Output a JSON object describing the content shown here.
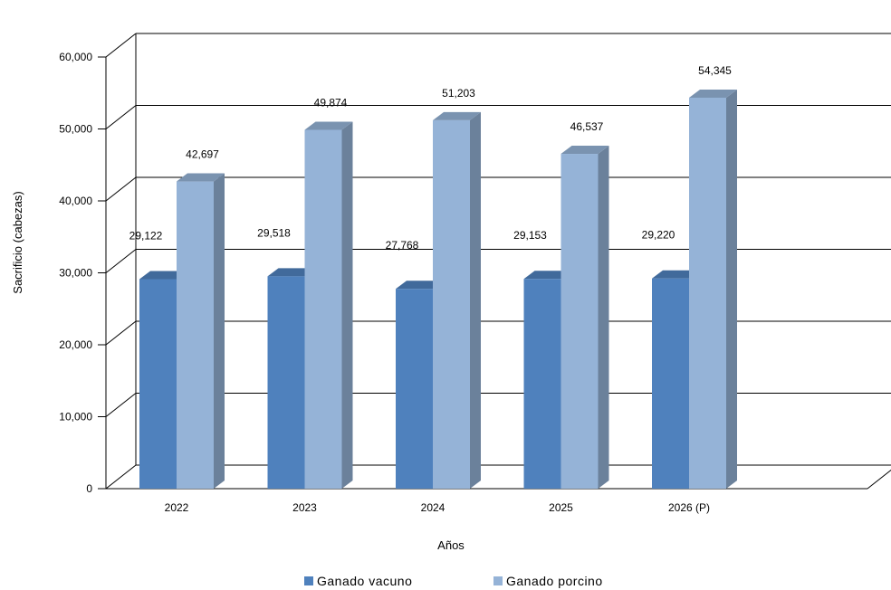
{
  "chart_data": {
    "type": "bar",
    "style": "3d-clustered-column",
    "categories": [
      "2022",
      "2023",
      "2024",
      "2025",
      "2026 (P)"
    ],
    "series": [
      {
        "name": "Ganado vacuno",
        "values": [
          29122,
          29518,
          27768,
          29153,
          29220
        ],
        "labels": [
          "29,122",
          "29,518",
          "27,768",
          "29,153",
          "29,220"
        ],
        "color": "#4f81bd"
      },
      {
        "name": "Ganado porcino",
        "values": [
          42697,
          49874,
          51203,
          46537,
          54345
        ],
        "labels": [
          "42,697",
          "49,874",
          "51,203",
          "46,537",
          "54,345"
        ],
        "color": "#95b3d7"
      }
    ],
    "title": "",
    "xlabel": "Años",
    "ylabel": "Sacrificio (cabezas)",
    "ylim": [
      0,
      60000
    ],
    "yticks": [
      0,
      10000,
      20000,
      30000,
      40000,
      50000,
      60000
    ],
    "ytick_labels": [
      "0",
      "10,000",
      "20,000",
      "30,000",
      "40,000",
      "50,000",
      "60,000"
    ],
    "grid": true,
    "legend_position": "bottom"
  }
}
